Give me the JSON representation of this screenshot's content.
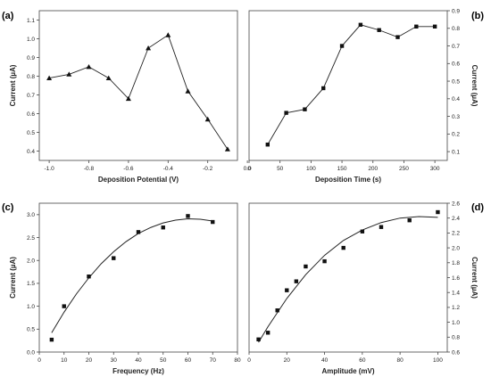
{
  "colors": {
    "line": "#222222",
    "marker": "#111111",
    "axis": "#444444"
  },
  "chart_data": [
    {
      "panel": "(a)",
      "type": "line",
      "xlabel": "Deposition Potential (V)",
      "ylabel": "Current (µA)",
      "xlim": [
        -1.05,
        -0.05
      ],
      "ylim": [
        0.35,
        1.15
      ],
      "xticks": [
        -1.0,
        -0.8,
        -0.6,
        -0.4,
        -0.2,
        0.0
      ],
      "xtick_labels": [
        "-1.0",
        "-0.8",
        "-0.6",
        "-0.4",
        "-0.2",
        "0.0"
      ],
      "yticks": [
        0.4,
        0.5,
        0.6,
        0.7,
        0.8,
        0.9,
        1.0,
        1.1
      ],
      "ytick_labels": [
        "0.4",
        "0.5",
        "0.6",
        "0.7",
        "0.8",
        "0.9",
        "1.0",
        "1.1"
      ],
      "yaxis_side": "left",
      "marker": "triangle",
      "connect": "line",
      "x": [
        -1.0,
        -0.9,
        -0.8,
        -0.7,
        -0.6,
        -0.5,
        -0.4,
        -0.3,
        -0.2,
        -0.1
      ],
      "y": [
        0.79,
        0.81,
        0.85,
        0.79,
        0.68,
        0.95,
        1.02,
        0.72,
        0.57,
        0.41
      ]
    },
    {
      "panel": "(b)",
      "type": "line",
      "xlabel": "Deposition Time (s)",
      "ylabel": "Current (µA)",
      "xlim": [
        0,
        320
      ],
      "ylim": [
        0.05,
        0.9
      ],
      "xticks": [
        0,
        50,
        100,
        150,
        200,
        250,
        300
      ],
      "xtick_labels": [
        "0",
        "50",
        "100",
        "150",
        "200",
        "250",
        "300"
      ],
      "yticks": [
        0.1,
        0.2,
        0.3,
        0.4,
        0.5,
        0.6,
        0.7,
        0.8,
        0.9
      ],
      "ytick_labels": [
        "0.1",
        "0.2",
        "0.3",
        "0.4",
        "0.5",
        "0.6",
        "0.7",
        "0.8",
        "0.9"
      ],
      "yaxis_side": "right",
      "marker": "square",
      "connect": "line",
      "x": [
        30,
        60,
        90,
        120,
        150,
        180,
        210,
        240,
        270,
        300
      ],
      "y": [
        0.14,
        0.32,
        0.34,
        0.46,
        0.7,
        0.82,
        0.79,
        0.75,
        0.81,
        0.81
      ]
    },
    {
      "panel": "(c)",
      "type": "scatter",
      "xlabel": "Frequency (Hz)",
      "ylabel": "Current (µA)",
      "xlim": [
        0,
        80
      ],
      "ylim": [
        0,
        3.25
      ],
      "xticks": [
        0,
        10,
        20,
        30,
        40,
        50,
        60,
        70,
        80
      ],
      "xtick_labels": [
        "0",
        "10",
        "20",
        "30",
        "40",
        "50",
        "60",
        "70",
        "80"
      ],
      "yticks": [
        0.0,
        0.5,
        1.0,
        1.5,
        2.0,
        2.5,
        3.0
      ],
      "ytick_labels": [
        "0.0",
        "0.5",
        "1.0",
        "1.5",
        "2.0",
        "2.5",
        "3.0"
      ],
      "yaxis_side": "left",
      "marker": "square",
      "connect": "fit",
      "x": [
        5,
        10,
        20,
        30,
        40,
        50,
        60,
        70
      ],
      "y": [
        0.27,
        1.0,
        1.65,
        2.05,
        2.62,
        2.72,
        2.97,
        2.84
      ],
      "fit_x": [
        5,
        10,
        15,
        20,
        25,
        30,
        35,
        40,
        45,
        50,
        55,
        60,
        65,
        70
      ],
      "fit_y": [
        0.42,
        0.87,
        1.27,
        1.62,
        1.93,
        2.19,
        2.41,
        2.59,
        2.72,
        2.82,
        2.88,
        2.91,
        2.9,
        2.86
      ]
    },
    {
      "panel": "(d)",
      "type": "scatter",
      "xlabel": "Amplitude (mV)",
      "ylabel": "Current (µA)",
      "xlim": [
        0,
        105
      ],
      "ylim": [
        0.6,
        2.6
      ],
      "xticks": [
        0,
        20,
        40,
        60,
        80,
        100
      ],
      "xtick_labels": [
        "0",
        "20",
        "40",
        "60",
        "80",
        "100"
      ],
      "yticks": [
        0.6,
        0.8,
        1.0,
        1.2,
        1.4,
        1.6,
        1.8,
        2.0,
        2.2,
        2.4,
        2.6
      ],
      "ytick_labels": [
        "0.6",
        "0.8",
        "1.0",
        "1.2",
        "1.4",
        "1.6",
        "1.8",
        "2.0",
        "2.2",
        "2.4",
        "2.6"
      ],
      "yaxis_side": "right",
      "marker": "square",
      "connect": "fit",
      "x": [
        5,
        10,
        15,
        20,
        25,
        30,
        40,
        50,
        60,
        70,
        85,
        100
      ],
      "y": [
        0.77,
        0.86,
        1.16,
        1.43,
        1.55,
        1.75,
        1.82,
        2.0,
        2.22,
        2.28,
        2.37,
        2.48
      ],
      "fit_x": [
        5,
        10,
        20,
        30,
        40,
        50,
        60,
        70,
        80,
        90,
        100
      ],
      "fit_y": [
        0.73,
        0.94,
        1.32,
        1.64,
        1.9,
        2.1,
        2.24,
        2.34,
        2.4,
        2.42,
        2.41
      ]
    }
  ]
}
